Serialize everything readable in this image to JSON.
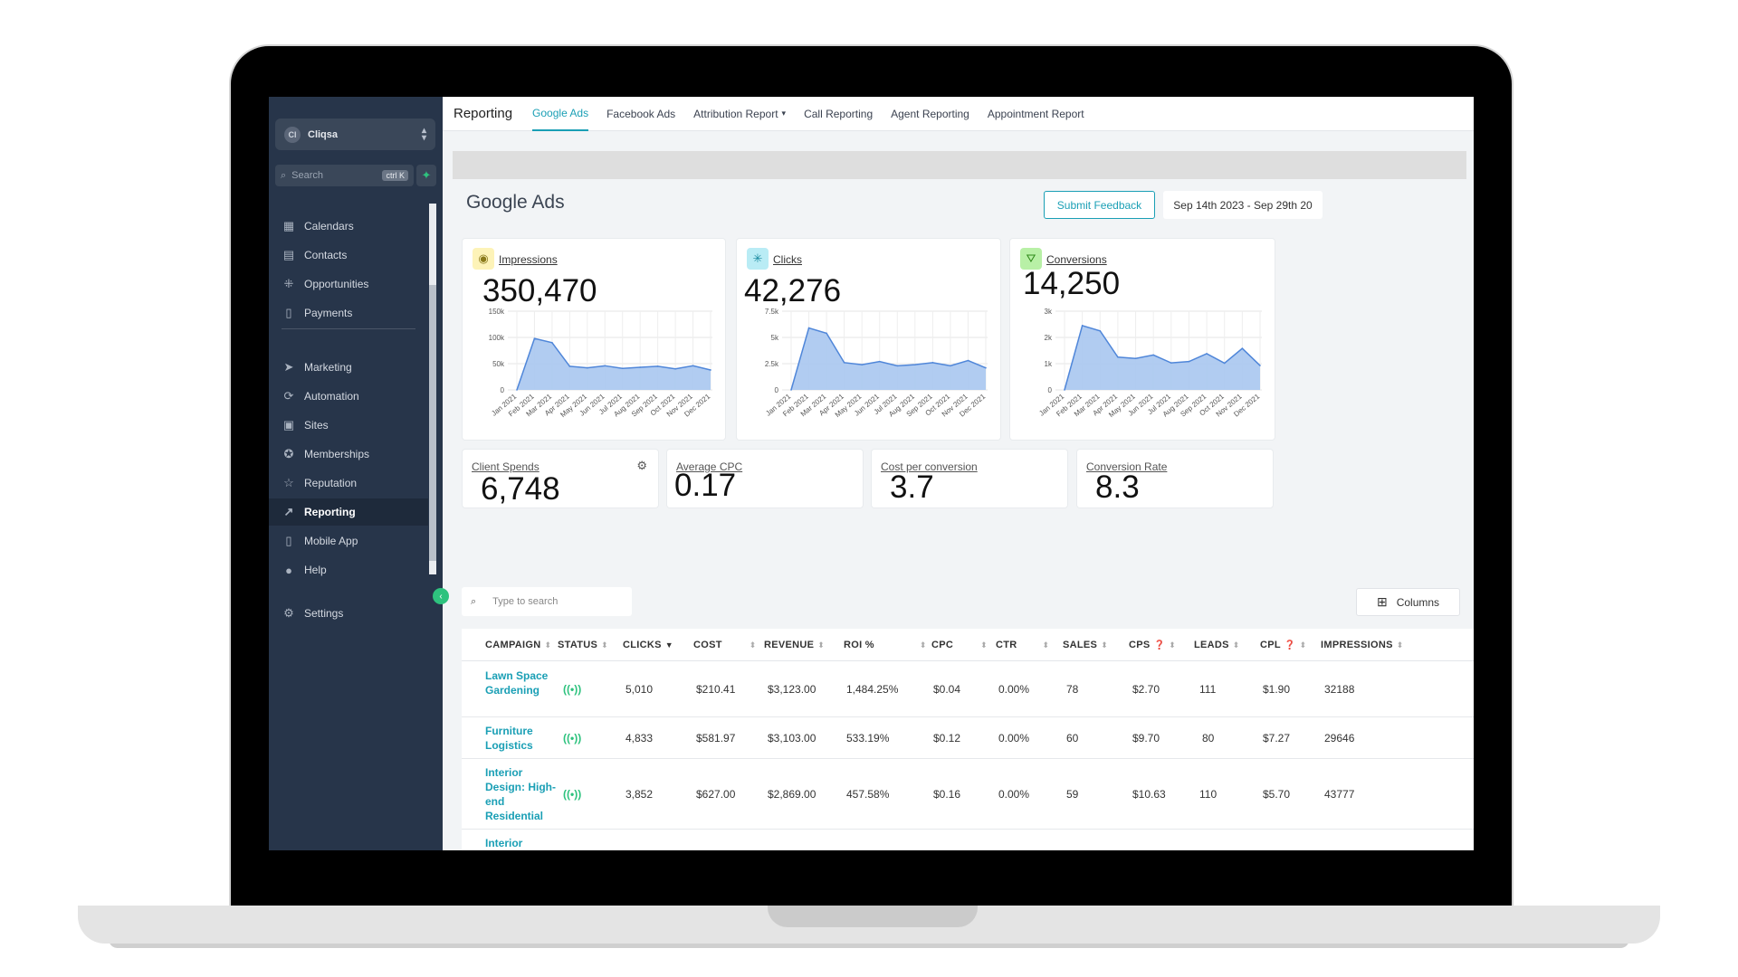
{
  "account": {
    "name": "Cliqsa",
    "avatar_initials": "Cl"
  },
  "search": {
    "placeholder": "Search",
    "shortcut": "ctrl K"
  },
  "sidebar": {
    "items": [
      {
        "label": "Calendars",
        "icon": "calendar-icon"
      },
      {
        "label": "Contacts",
        "icon": "contacts-icon"
      },
      {
        "label": "Opportunities",
        "icon": "opportunities-icon"
      },
      {
        "label": "Payments",
        "icon": "payments-icon"
      },
      {
        "label": "Marketing",
        "icon": "send-icon"
      },
      {
        "label": "Automation",
        "icon": "automation-icon"
      },
      {
        "label": "Sites",
        "icon": "sites-icon"
      },
      {
        "label": "Memberships",
        "icon": "award-icon"
      },
      {
        "label": "Reputation",
        "icon": "star-icon"
      },
      {
        "label": "Reporting",
        "icon": "trend-icon",
        "active": true
      },
      {
        "label": "Mobile App",
        "icon": "phone-icon"
      },
      {
        "label": "Help",
        "icon": "help-icon"
      },
      {
        "label": "Settings",
        "icon": "gear-icon"
      }
    ]
  },
  "topbar": {
    "title": "Reporting",
    "tabs": [
      "Google Ads",
      "Facebook Ads",
      "Attribution Report",
      "Call Reporting",
      "Agent Reporting",
      "Appointment Report"
    ],
    "active_tab": "Google Ads"
  },
  "page": {
    "title": "Google Ads",
    "feedback_label": "Submit Feedback",
    "date_range": "Sep 14th 2023 - Sep 29th 20"
  },
  "metrics": [
    {
      "label": "Impressions",
      "value": "350,470",
      "icon": "eye-icon",
      "icon_bg": "#fdf3b8"
    },
    {
      "label": "Clicks",
      "value": "42,276",
      "icon": "click-icon",
      "icon_bg": "#b9ecf5"
    },
    {
      "label": "Conversions",
      "value": "14,250",
      "icon": "conversion-icon",
      "icon_bg": "#b8f0a6"
    }
  ],
  "chart_data": [
    {
      "type": "area",
      "title": "Impressions",
      "x": [
        "Jan 2021",
        "Feb 2021",
        "Mar 2021",
        "Apr 2021",
        "May 2021",
        "Jun 2021",
        "Jul 2021",
        "Aug 2021",
        "Sep 2021",
        "Oct 2021",
        "Nov 2021",
        "Dec 2021"
      ],
      "values": [
        0,
        98000,
        90000,
        45000,
        42000,
        46000,
        41000,
        43000,
        45000,
        40000,
        46000,
        38000
      ],
      "yticks": [
        "0",
        "50k",
        "100k",
        "150k"
      ],
      "ylim": [
        0,
        150000
      ]
    },
    {
      "type": "area",
      "title": "Clicks",
      "x": [
        "Jan 2021",
        "Feb 2021",
        "Mar 2021",
        "Apr 2021",
        "May 2021",
        "Jun 2021",
        "Jul 2021",
        "Aug 2021",
        "Sep 2021",
        "Oct 2021",
        "Nov 2021",
        "Dec 2021"
      ],
      "values": [
        0,
        5900,
        5400,
        2600,
        2400,
        2700,
        2300,
        2400,
        2600,
        2300,
        2800,
        2100
      ],
      "yticks": [
        "0",
        "2.5k",
        "5k",
        "7.5k"
      ],
      "ylim": [
        0,
        7500
      ]
    },
    {
      "type": "area",
      "title": "Conversions",
      "x": [
        "Jan 2021",
        "Feb 2021",
        "Mar 2021",
        "Apr 2021",
        "May 2021",
        "Jun 2021",
        "Jul 2021",
        "Aug 2021",
        "Sep 2021",
        "Oct 2021",
        "Nov 2021",
        "Dec 2021"
      ],
      "values": [
        0,
        2450,
        2250,
        1250,
        1200,
        1330,
        1030,
        1080,
        1380,
        1020,
        1580,
        930
      ],
      "yticks": [
        "0",
        "1k",
        "2k",
        "3k"
      ],
      "ylim": [
        0,
        3000
      ]
    }
  ],
  "small_metrics": [
    {
      "label": "Client Spends",
      "value": "6,748"
    },
    {
      "label": "Average CPC",
      "value": "0.17"
    },
    {
      "label": "Cost per conversion",
      "value": "3.7"
    },
    {
      "label": "Conversion Rate",
      "value": "8.3"
    }
  ],
  "table": {
    "search_placeholder": "Type to search",
    "columns_label": "Columns",
    "headers": [
      "CAMPAIGN",
      "STATUS",
      "CLICKS",
      "COST",
      "REVENUE",
      "ROI %",
      "CPC",
      "CTR",
      "SALES",
      "CPS",
      "LEADS",
      "CPL",
      "IMPRESSIONS"
    ],
    "rows": [
      {
        "campaign": "Lawn Space Gardening",
        "status": "((•))",
        "clicks": "5,010",
        "cost": "$210.41",
        "revenue": "$3,123.00",
        "roi": "1,484.25%",
        "cpc": "$0.04",
        "ctr": "0.00%",
        "sales": "78",
        "cps": "$2.70",
        "leads": "111",
        "cpl": "$1.90",
        "impressions": "32188"
      },
      {
        "campaign": "Furniture Logistics",
        "status": "((•))",
        "clicks": "4,833",
        "cost": "$581.97",
        "revenue": "$3,103.00",
        "roi": "533.19%",
        "cpc": "$0.12",
        "ctr": "0.00%",
        "sales": "60",
        "cps": "$9.70",
        "leads": "80",
        "cpl": "$7.27",
        "impressions": "29646"
      },
      {
        "campaign": "Interior Design: High-end Residential",
        "status": "((•))",
        "clicks": "3,852",
        "cost": "$627.00",
        "revenue": "$2,869.00",
        "roi": "457.58%",
        "cpc": "$0.16",
        "ctr": "0.00%",
        "sales": "59",
        "cps": "$10.63",
        "leads": "110",
        "cpl": "$5.70",
        "impressions": "43777"
      },
      {
        "campaign": "Interior"
      }
    ]
  }
}
